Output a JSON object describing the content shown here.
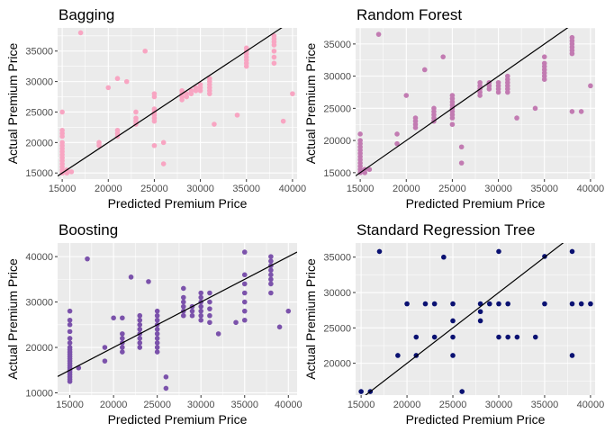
{
  "chart_data": [
    {
      "type": "scatter",
      "title": "Bagging",
      "xlabel": "Predicted Premium Price",
      "ylabel": "Actual Premium Price",
      "xlim": [
        14500,
        40500
      ],
      "ylim": [
        14000,
        38800
      ],
      "xticks": [
        15000,
        20000,
        25000,
        30000,
        35000,
        40000
      ],
      "yticks": [
        15000,
        20000,
        25000,
        30000,
        35000
      ],
      "grid": true,
      "color": "#f8a5c2",
      "reference_line": {
        "slope": 1,
        "intercept": 0
      },
      "points": [
        [
          15000,
          15000
        ],
        [
          15000,
          15500
        ],
        [
          15000,
          16000
        ],
        [
          15000,
          16500
        ],
        [
          15000,
          17000
        ],
        [
          15000,
          17500
        ],
        [
          15000,
          18000
        ],
        [
          15000,
          18500
        ],
        [
          15000,
          19000
        ],
        [
          15000,
          19500
        ],
        [
          15000,
          20000
        ],
        [
          15000,
          21000
        ],
        [
          15000,
          21500
        ],
        [
          15000,
          22000
        ],
        [
          15000,
          25000
        ],
        [
          15500,
          15000
        ],
        [
          15500,
          15500
        ],
        [
          16000,
          15200
        ],
        [
          17000,
          38000
        ],
        [
          19000,
          19500
        ],
        [
          19000,
          20000
        ],
        [
          20000,
          29000
        ],
        [
          21000,
          21000
        ],
        [
          21000,
          21500
        ],
        [
          21000,
          22000
        ],
        [
          21000,
          30500
        ],
        [
          22000,
          30000
        ],
        [
          23000,
          23000
        ],
        [
          23000,
          23500
        ],
        [
          23000,
          24000
        ],
        [
          23000,
          25000
        ],
        [
          24000,
          35000
        ],
        [
          25000,
          19500
        ],
        [
          25000,
          23500
        ],
        [
          25000,
          24000
        ],
        [
          25000,
          24500
        ],
        [
          25000,
          25000
        ],
        [
          25000,
          25500
        ],
        [
          25000,
          27500
        ],
        [
          25000,
          28000
        ],
        [
          26000,
          16500
        ],
        [
          26000,
          20000
        ],
        [
          28000,
          27000
        ],
        [
          28000,
          27500
        ],
        [
          28000,
          28000
        ],
        [
          28000,
          28500
        ],
        [
          28500,
          27500
        ],
        [
          28500,
          28000
        ],
        [
          29000,
          28000
        ],
        [
          29000,
          28500
        ],
        [
          29500,
          28500
        ],
        [
          29500,
          29000
        ],
        [
          30000,
          28500
        ],
        [
          30000,
          29000
        ],
        [
          30000,
          29500
        ],
        [
          31000,
          28000
        ],
        [
          31000,
          28500
        ],
        [
          31000,
          29000
        ],
        [
          31000,
          29500
        ],
        [
          31000,
          30000
        ],
        [
          31000,
          30500
        ],
        [
          31500,
          23000
        ],
        [
          34000,
          24500
        ],
        [
          35000,
          32500
        ],
        [
          35000,
          33000
        ],
        [
          35000,
          33500
        ],
        [
          35000,
          34000
        ],
        [
          35000,
          34500
        ],
        [
          35000,
          35000
        ],
        [
          35000,
          35500
        ],
        [
          38000,
          33000
        ],
        [
          38000,
          34000
        ],
        [
          38000,
          35000
        ],
        [
          38000,
          36000
        ],
        [
          38000,
          36500
        ],
        [
          38000,
          37000
        ],
        [
          38000,
          37500
        ],
        [
          39000,
          23500
        ],
        [
          40000,
          28000
        ]
      ]
    },
    {
      "type": "scatter",
      "title": "Random Forest",
      "xlabel": "Predicted Premium Price",
      "ylabel": "Actual Premium Price",
      "xlim": [
        14500,
        40500
      ],
      "ylim": [
        14000,
        37500
      ],
      "xticks": [
        15000,
        20000,
        25000,
        30000,
        35000,
        40000
      ],
      "yticks": [
        15000,
        20000,
        25000,
        30000,
        35000
      ],
      "grid": true,
      "color": "#c27bb2",
      "reference_line": {
        "slope": 1,
        "intercept": 0
      },
      "points": [
        [
          15000,
          15000
        ],
        [
          15000,
          15500
        ],
        [
          15000,
          16000
        ],
        [
          15000,
          16500
        ],
        [
          15000,
          17000
        ],
        [
          15000,
          17500
        ],
        [
          15000,
          18000
        ],
        [
          15000,
          18500
        ],
        [
          15000,
          19000
        ],
        [
          15000,
          19500
        ],
        [
          15000,
          20000
        ],
        [
          15000,
          21000
        ],
        [
          15500,
          15000
        ],
        [
          15500,
          15500
        ],
        [
          16000,
          15500
        ],
        [
          17000,
          36500
        ],
        [
          19000,
          19500
        ],
        [
          19000,
          21000
        ],
        [
          20000,
          27000
        ],
        [
          21000,
          22000
        ],
        [
          21000,
          22500
        ],
        [
          21000,
          23000
        ],
        [
          21000,
          23500
        ],
        [
          22000,
          31000
        ],
        [
          23000,
          23000
        ],
        [
          23000,
          23500
        ],
        [
          23000,
          24000
        ],
        [
          23000,
          24500
        ],
        [
          23000,
          25000
        ],
        [
          24000,
          33000
        ],
        [
          25000,
          22500
        ],
        [
          25000,
          23500
        ],
        [
          25000,
          24000
        ],
        [
          25000,
          24500
        ],
        [
          25000,
          25000
        ],
        [
          25000,
          25500
        ],
        [
          25000,
          26000
        ],
        [
          25000,
          26500
        ],
        [
          25000,
          27000
        ],
        [
          26000,
          16500
        ],
        [
          26000,
          19000
        ],
        [
          28000,
          27000
        ],
        [
          28000,
          27500
        ],
        [
          28000,
          28000
        ],
        [
          28000,
          28500
        ],
        [
          28000,
          29000
        ],
        [
          29000,
          28000
        ],
        [
          29000,
          28500
        ],
        [
          29000,
          29000
        ],
        [
          30000,
          27500
        ],
        [
          30000,
          28000
        ],
        [
          30000,
          28500
        ],
        [
          30000,
          29000
        ],
        [
          31000,
          27500
        ],
        [
          31000,
          28000
        ],
        [
          31000,
          28500
        ],
        [
          31000,
          29000
        ],
        [
          31000,
          29500
        ],
        [
          31000,
          30000
        ],
        [
          32000,
          23500
        ],
        [
          34000,
          25000
        ],
        [
          35000,
          29500
        ],
        [
          35000,
          30000
        ],
        [
          35000,
          30500
        ],
        [
          35000,
          31000
        ],
        [
          35000,
          31500
        ],
        [
          35000,
          32000
        ],
        [
          35000,
          33000
        ],
        [
          38000,
          24500
        ],
        [
          38000,
          33500
        ],
        [
          38000,
          34000
        ],
        [
          38000,
          34500
        ],
        [
          38000,
          35000
        ],
        [
          38000,
          35500
        ],
        [
          38000,
          36000
        ],
        [
          39000,
          24500
        ],
        [
          40000,
          28500
        ]
      ]
    },
    {
      "type": "scatter",
      "title": "Boosting",
      "xlabel": "Predicted Premium Price",
      "ylabel": "Actual Premium Price",
      "xlim": [
        13600,
        41000
      ],
      "ylim": [
        9500,
        43000
      ],
      "xticks": [
        15000,
        20000,
        25000,
        30000,
        35000,
        40000
      ],
      "yticks": [
        10000,
        20000,
        30000,
        40000
      ],
      "grid": true,
      "color": "#7b52ab",
      "reference_line": {
        "slope": 1,
        "intercept": 0
      },
      "points": [
        [
          15000,
          12500
        ],
        [
          15000,
          13000
        ],
        [
          15000,
          13500
        ],
        [
          15000,
          14000
        ],
        [
          15000,
          14500
        ],
        [
          15000,
          15000
        ],
        [
          15000,
          15500
        ],
        [
          15000,
          16000
        ],
        [
          15000,
          16500
        ],
        [
          15000,
          17000
        ],
        [
          15000,
          17500
        ],
        [
          15000,
          18000
        ],
        [
          15000,
          18500
        ],
        [
          15000,
          19000
        ],
        [
          15000,
          19500
        ],
        [
          15000,
          20000
        ],
        [
          15000,
          21000
        ],
        [
          15000,
          22000
        ],
        [
          15000,
          23500
        ],
        [
          15000,
          25000
        ],
        [
          15000,
          26000
        ],
        [
          15000,
          28000
        ],
        [
          16000,
          15500
        ],
        [
          17000,
          39500
        ],
        [
          19000,
          17000
        ],
        [
          19000,
          20000
        ],
        [
          20000,
          26500
        ],
        [
          21000,
          19000
        ],
        [
          21000,
          20000
        ],
        [
          21000,
          21000
        ],
        [
          21000,
          22000
        ],
        [
          21000,
          23000
        ],
        [
          21000,
          26500
        ],
        [
          22000,
          35500
        ],
        [
          23000,
          20000
        ],
        [
          23000,
          21000
        ],
        [
          23000,
          22000
        ],
        [
          23000,
          23000
        ],
        [
          23000,
          24000
        ],
        [
          23000,
          25000
        ],
        [
          23000,
          26000
        ],
        [
          23000,
          27000
        ],
        [
          24000,
          34500
        ],
        [
          25000,
          19000
        ],
        [
          25000,
          20000
        ],
        [
          25000,
          21000
        ],
        [
          25000,
          22000
        ],
        [
          25000,
          23000
        ],
        [
          25000,
          24000
        ],
        [
          25000,
          25000
        ],
        [
          25000,
          26000
        ],
        [
          25000,
          27000
        ],
        [
          25000,
          28000
        ],
        [
          26000,
          11000
        ],
        [
          26000,
          13500
        ],
        [
          28000,
          27000
        ],
        [
          28000,
          28000
        ],
        [
          28000,
          29000
        ],
        [
          28000,
          30000
        ],
        [
          28000,
          31000
        ],
        [
          28000,
          33000
        ],
        [
          29000,
          27000
        ],
        [
          29000,
          28000
        ],
        [
          29000,
          29000
        ],
        [
          30000,
          26000
        ],
        [
          30000,
          27000
        ],
        [
          30000,
          28000
        ],
        [
          30000,
          29000
        ],
        [
          30000,
          30000
        ],
        [
          30000,
          31000
        ],
        [
          30000,
          32000
        ],
        [
          31000,
          25500
        ],
        [
          31000,
          27000
        ],
        [
          31000,
          28500
        ],
        [
          31000,
          30000
        ],
        [
          31000,
          32000
        ],
        [
          32000,
          23000
        ],
        [
          34000,
          25500
        ],
        [
          35000,
          26000
        ],
        [
          35000,
          28000
        ],
        [
          35000,
          30000
        ],
        [
          35000,
          32000
        ],
        [
          35000,
          34000
        ],
        [
          35000,
          36000
        ],
        [
          35000,
          41000
        ],
        [
          38000,
          32000
        ],
        [
          38000,
          34000
        ],
        [
          38000,
          35000
        ],
        [
          38000,
          36000
        ],
        [
          38000,
          37000
        ],
        [
          38000,
          38000
        ],
        [
          38000,
          39000
        ],
        [
          38000,
          40000
        ],
        [
          39000,
          24500
        ],
        [
          40000,
          28000
        ]
      ]
    },
    {
      "type": "scatter",
      "title": "Standard Regression Tree",
      "xlabel": "Predicted Premium Price",
      "ylabel": "Actual Premium Price",
      "xlim": [
        14400,
        40500
      ],
      "ylim": [
        15500,
        37000
      ],
      "xticks": [
        15000,
        20000,
        25000,
        30000,
        35000,
        40000
      ],
      "yticks": [
        20000,
        25000,
        30000,
        35000
      ],
      "grid": true,
      "color": "#0a1172",
      "reference_line": {
        "slope": 1,
        "intercept": 0
      },
      "points": [
        [
          15000,
          16000
        ],
        [
          16000,
          16000
        ],
        [
          17000,
          35800
        ],
        [
          19000,
          21100
        ],
        [
          20000,
          28400
        ],
        [
          21000,
          21100
        ],
        [
          21000,
          23700
        ],
        [
          22000,
          28400
        ],
        [
          23000,
          23700
        ],
        [
          23000,
          28400
        ],
        [
          24000,
          35000
        ],
        [
          25000,
          21100
        ],
        [
          25000,
          23700
        ],
        [
          25000,
          26000
        ],
        [
          25000,
          28400
        ],
        [
          26000,
          16000
        ],
        [
          28000,
          26000
        ],
        [
          28000,
          27300
        ],
        [
          28000,
          28400
        ],
        [
          29000,
          28400
        ],
        [
          30000,
          23700
        ],
        [
          30000,
          28400
        ],
        [
          30000,
          35800
        ],
        [
          31000,
          28400
        ],
        [
          31000,
          23700
        ],
        [
          32000,
          23700
        ],
        [
          34000,
          23700
        ],
        [
          35000,
          28400
        ],
        [
          35000,
          35100
        ],
        [
          38000,
          21100
        ],
        [
          38000,
          28400
        ],
        [
          38000,
          35800
        ],
        [
          39000,
          28400
        ],
        [
          40000,
          28400
        ]
      ]
    }
  ]
}
